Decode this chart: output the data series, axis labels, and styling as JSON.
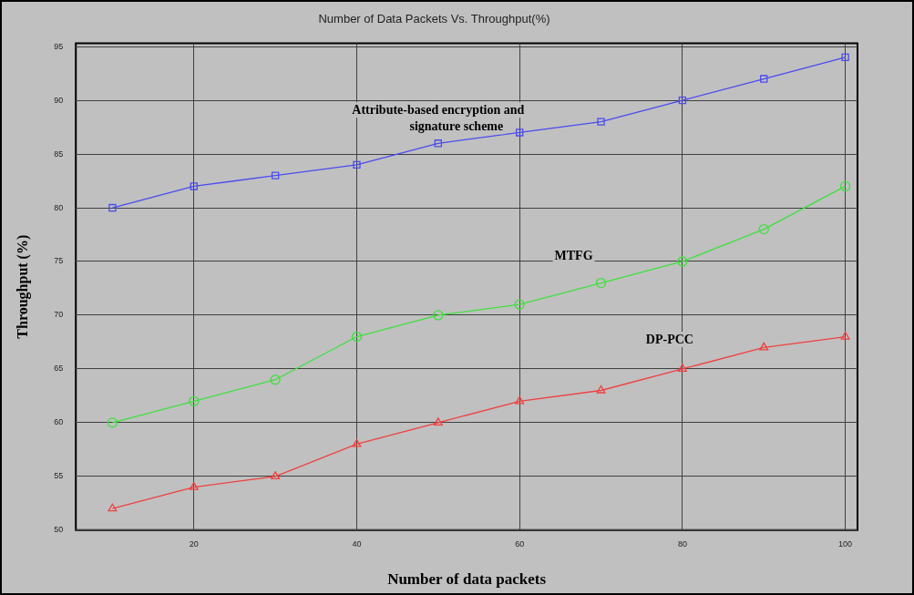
{
  "chart_data": {
    "type": "line",
    "title": "Number of Data Packets Vs. Throughput(%)",
    "xlabel": "Number of data packets",
    "ylabel": "Throughput (%)",
    "x": [
      10,
      20,
      30,
      40,
      50,
      60,
      70,
      80,
      90,
      100
    ],
    "series": [
      {
        "name": "Attribute-based encryption and signature scheme",
        "color": "#4b4bf0",
        "marker": "square",
        "values": [
          80,
          82,
          83,
          84,
          86,
          87,
          88,
          90,
          92,
          94
        ]
      },
      {
        "name": "MTFG",
        "color": "#3fe03f",
        "marker": "circle",
        "values": [
          60,
          62,
          64,
          68,
          70,
          71,
          73,
          75,
          78,
          82
        ]
      },
      {
        "name": "DP-PCC",
        "color": "#f04040",
        "marker": "triangle",
        "values": [
          52,
          54,
          55,
          58,
          60,
          62,
          63,
          65,
          67,
          68
        ]
      }
    ],
    "xlim": [
      5.5,
      101.5
    ],
    "xticks": [
      20,
      40,
      60,
      80,
      100
    ],
    "ylim": [
      50,
      95.3
    ],
    "yticks": [
      50,
      55,
      60,
      65,
      70,
      75,
      80,
      85,
      90,
      95
    ],
    "grid": true,
    "legend": false,
    "line_style": "solid"
  }
}
